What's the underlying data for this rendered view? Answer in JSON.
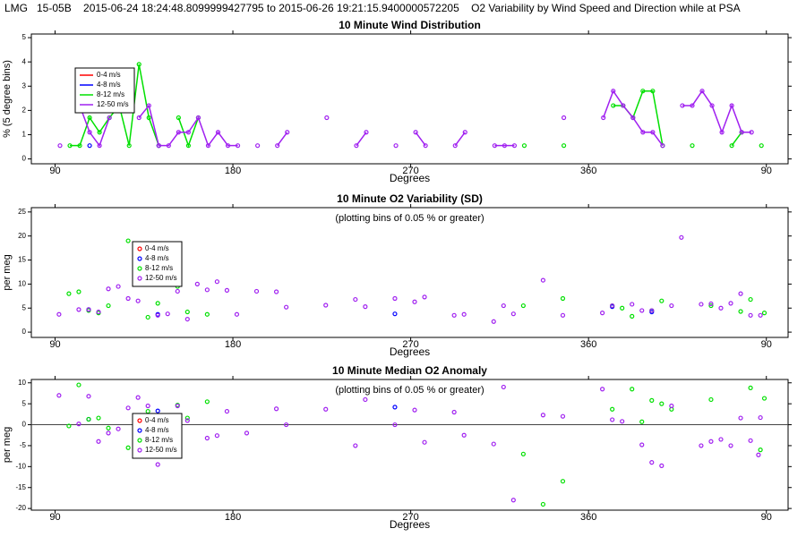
{
  "header": "LMG   15-05B    2015-06-24 18:24:48.8099999427795 to 2015-06-26 19:21:15.9400000572205    O2 Variability by Wind Speed and Direction while at PSA",
  "chart_data": [
    {
      "type": "line",
      "title": "10 Minute Wind Distribution",
      "xlabel": "Degrees",
      "ylabel": "% (5 degree bins)",
      "xlim": [
        78,
        461
      ],
      "xticks": [
        90,
        180,
        270,
        360,
        {
          "value": 450,
          "label": "90"
        }
      ],
      "ylim": [
        -0.2,
        5.15
      ],
      "yticks": [
        0,
        1,
        2,
        3,
        4,
        5
      ],
      "x": [
        92.5,
        97.5,
        102.5,
        107.5,
        112.5,
        117.5,
        122.5,
        127.5,
        132.5,
        137.5,
        142.5,
        147.5,
        152.5,
        157.5,
        162.5,
        167.5,
        172.5,
        177.5,
        182.5,
        187.5,
        192.5,
        197.5,
        202.5,
        207.5,
        212.5,
        217.5,
        222.5,
        227.5,
        232.5,
        237.5,
        242.5,
        247.5,
        252.5,
        257.5,
        262.5,
        267.5,
        272.5,
        277.5,
        282.5,
        287.5,
        292.5,
        297.5,
        302.5,
        307.5,
        312.5,
        317.5,
        322.5,
        327.5,
        332.5,
        337.5,
        342.5,
        347.5,
        352.5,
        357.5,
        362.5,
        367.5,
        372.5,
        377.5,
        382.5,
        387.5,
        392.5,
        397.5,
        402.5,
        407.5,
        412.5,
        417.5,
        422.5,
        427.5,
        432.5,
        437.5,
        442.5,
        447.5
      ],
      "series": [
        {
          "name": "0-4 m/s",
          "color": "#ff0000",
          "values": [
            null,
            null,
            null,
            null,
            null,
            null,
            null,
            null,
            null,
            null,
            null,
            null,
            null,
            null,
            null,
            null,
            null,
            null,
            null,
            null,
            null,
            null,
            null,
            null,
            null,
            null,
            null,
            null,
            null,
            null,
            null,
            null,
            null,
            null,
            null,
            null,
            null,
            null,
            null,
            null,
            null,
            null,
            null,
            null,
            null,
            null,
            null,
            null,
            null,
            null,
            null,
            null,
            null,
            null,
            null,
            null,
            null,
            null,
            null,
            null,
            null,
            null,
            null,
            null,
            null,
            null,
            null,
            null,
            null,
            null,
            null,
            null
          ]
        },
        {
          "name": "4-8 m/s",
          "color": "#0000ff",
          "values": [
            null,
            null,
            null,
            0.55,
            null,
            null,
            null,
            null,
            null,
            null,
            0.55,
            null,
            null,
            null,
            null,
            null,
            null,
            null,
            null,
            null,
            null,
            null,
            null,
            null,
            null,
            null,
            null,
            null,
            null,
            null,
            null,
            null,
            null,
            null,
            null,
            null,
            null,
            null,
            null,
            null,
            null,
            null,
            null,
            null,
            null,
            null,
            null,
            null,
            null,
            null,
            null,
            null,
            null,
            null,
            null,
            null,
            null,
            null,
            null,
            null,
            null,
            null,
            null,
            null,
            null,
            null,
            null,
            null,
            null,
            null,
            null,
            null
          ]
        },
        {
          "name": "8-12 m/s",
          "color": "#00e000",
          "values": [
            null,
            0.55,
            0.55,
            1.7,
            1.1,
            1.7,
            2.2,
            0.55,
            3.9,
            1.7,
            0.55,
            null,
            1.7,
            0.55,
            1.7,
            null,
            null,
            null,
            null,
            null,
            null,
            null,
            null,
            null,
            null,
            null,
            null,
            null,
            null,
            null,
            null,
            null,
            null,
            null,
            null,
            null,
            null,
            null,
            null,
            null,
            null,
            null,
            null,
            null,
            null,
            null,
            null,
            0.55,
            null,
            null,
            null,
            0.55,
            null,
            null,
            null,
            null,
            2.2,
            2.2,
            1.7,
            2.8,
            2.8,
            0.55,
            null,
            null,
            0.55,
            null,
            null,
            null,
            0.55,
            1.1,
            null,
            0.55
          ]
        },
        {
          "name": "12-50 m/s",
          "color": "#a020f0",
          "values": [
            0.55,
            null,
            2.2,
            1.1,
            0.55,
            1.7,
            null,
            null,
            1.7,
            2.2,
            0.55,
            0.55,
            1.1,
            1.1,
            1.7,
            0.55,
            1.1,
            0.55,
            0.55,
            null,
            0.55,
            null,
            0.55,
            1.1,
            null,
            null,
            null,
            1.7,
            null,
            null,
            0.55,
            1.1,
            null,
            null,
            0.55,
            null,
            1.1,
            0.55,
            null,
            null,
            0.55,
            1.1,
            null,
            null,
            0.55,
            0.55,
            0.55,
            null,
            null,
            null,
            null,
            1.7,
            null,
            null,
            null,
            1.7,
            2.8,
            2.2,
            1.7,
            1.1,
            1.1,
            0.55,
            null,
            2.2,
            2.2,
            2.8,
            2.2,
            1.1,
            2.2,
            1.1,
            1.1,
            null
          ]
        }
      ]
    },
    {
      "type": "scatter",
      "title": "10 Minute O2 Variability (SD)",
      "annotation": "(plotting bins of 0.05 % or greater)",
      "xlabel": "Degrees",
      "ylabel": "per meg",
      "xlim": [
        78,
        461
      ],
      "xticks": [
        90,
        180,
        270,
        360,
        {
          "value": 450,
          "label": "90"
        }
      ],
      "ylim": [
        -1.1,
        25.9
      ],
      "yticks": [
        0,
        5,
        10,
        15,
        20,
        25
      ],
      "series": [
        {
          "name": "0-4 m/s",
          "color": "#ff0000",
          "x": [],
          "values": []
        },
        {
          "name": "4-8 m/s",
          "color": "#0000ff",
          "x": [
            107,
            142,
            262,
            372,
            392
          ],
          "values": [
            4.7,
            3.7,
            3.8,
            5.3,
            4.2
          ]
        },
        {
          "name": "8-12 m/s",
          "color": "#00e000",
          "x": [
            97,
            102,
            107,
            112,
            117,
            127,
            137,
            142,
            152,
            157,
            167,
            327,
            347,
            372,
            377,
            382,
            392,
            397,
            422,
            437,
            442,
            449
          ],
          "values": [
            8.0,
            8.4,
            4.5,
            4.0,
            5.5,
            19.0,
            3.1,
            6.0,
            9.5,
            4.2,
            3.7,
            5.5,
            7.0,
            5.5,
            5.0,
            3.3,
            4.5,
            6.5,
            5.5,
            4.3,
            6.8,
            4.0
          ]
        },
        {
          "name": "12-50 m/s",
          "color": "#a020f0",
          "x": [
            92,
            102,
            107,
            112,
            117,
            122,
            127,
            132,
            142,
            147,
            152,
            157,
            162,
            167,
            172,
            177,
            182,
            192,
            202,
            207,
            227,
            242,
            247,
            262,
            272,
            277,
            292,
            297,
            312,
            317,
            322,
            337,
            347,
            367,
            372,
            382,
            387,
            392,
            402,
            407,
            417,
            422,
            427,
            432,
            437,
            442,
            447
          ],
          "values": [
            3.7,
            4.7,
            4.7,
            4.2,
            9.0,
            9.5,
            7.0,
            6.5,
            3.5,
            3.8,
            8.5,
            2.7,
            10.0,
            8.8,
            10.5,
            8.7,
            3.7,
            8.5,
            8.4,
            5.2,
            5.6,
            6.8,
            5.3,
            7.0,
            6.3,
            7.3,
            3.5,
            3.7,
            2.2,
            5.5,
            3.8,
            10.8,
            3.5,
            4.0,
            5.5,
            5.8,
            4.5,
            4.5,
            5.5,
            19.7,
            5.8,
            5.9,
            5.0,
            6.0,
            8.0,
            3.5,
            3.5
          ]
        }
      ]
    },
    {
      "type": "scatter",
      "title": "10 Minute Median O2 Anomaly",
      "annotation": "(plotting bins of 0.05 % or greater)",
      "xlabel": "Degrees",
      "ylabel": "per meg",
      "zero_line": true,
      "xlim": [
        78,
        461
      ],
      "xticks": [
        90,
        180,
        270,
        360,
        {
          "value": 450,
          "label": "90"
        }
      ],
      "ylim": [
        -20.4,
        10.8
      ],
      "yticks": [
        -20,
        -15,
        -10,
        -5,
        0,
        5,
        10
      ],
      "series": [
        {
          "name": "0-4 m/s",
          "color": "#ff0000",
          "x": [],
          "values": []
        },
        {
          "name": "4-8 m/s",
          "color": "#0000ff",
          "x": [
            107,
            142,
            262
          ],
          "values": [
            1.3,
            3.3,
            4.2
          ]
        },
        {
          "name": "8-12 m/s",
          "color": "#00e000",
          "x": [
            97,
            102,
            107,
            112,
            117,
            127,
            137,
            152,
            157,
            167,
            327,
            337,
            347,
            372,
            382,
            387,
            392,
            397,
            402,
            422,
            442,
            447,
            449
          ],
          "values": [
            -0.3,
            9.5,
            1.3,
            1.6,
            -0.8,
            -5.5,
            3.2,
            4.7,
            1.6,
            5.5,
            -7.0,
            -19,
            -13.5,
            3.7,
            8.5,
            0.7,
            5.8,
            5.0,
            3.7,
            6.0,
            8.8,
            -6.0,
            6.3
          ]
        },
        {
          "name": "12-50 m/s",
          "color": "#a020f0",
          "x": [
            92,
            102,
            107,
            112,
            117,
            122,
            127,
            132,
            137,
            142,
            152,
            157,
            167,
            172,
            177,
            187,
            202,
            207,
            227,
            242,
            247,
            262,
            272,
            277,
            292,
            297,
            312,
            317,
            322,
            337,
            347,
            367,
            372,
            377,
            387,
            392,
            397,
            402,
            417,
            422,
            427,
            432,
            437,
            442,
            446,
            447
          ],
          "values": [
            7.0,
            0.2,
            6.8,
            -4.0,
            -2.0,
            -1.0,
            4.0,
            6.5,
            4.5,
            -9.5,
            4.5,
            1.0,
            -3.2,
            -2.6,
            3.2,
            -2.0,
            3.8,
            0,
            3.7,
            -5.0,
            6.0,
            0,
            3.5,
            -4.2,
            3.0,
            -2.5,
            -4.6,
            9.0,
            -18,
            2.3,
            2.0,
            8.5,
            1.2,
            0.8,
            -4.8,
            -9.0,
            -9.8,
            4.5,
            -5.0,
            -4.0,
            -3.5,
            -5.0,
            1.6,
            -3.8,
            -7.2,
            1.7
          ]
        }
      ]
    }
  ]
}
